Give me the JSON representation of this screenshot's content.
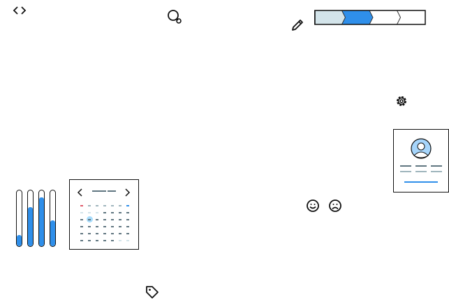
{
  "icons": {
    "code": "code-icon",
    "idea_search": "lightbulb-search-icon",
    "edit": "pencil-icon",
    "settings": "gear-icon",
    "happy": "smile-icon",
    "sad": "frown-icon",
    "tag": "tag-icon"
  },
  "stepper": {
    "steps": 4,
    "completed": 1,
    "current": 2
  },
  "level_bars": [
    0.2,
    0.7,
    0.87,
    0.46
  ],
  "calendar": {
    "rows": 6,
    "cols": 7,
    "selected": [
      2,
      1
    ]
  },
  "colors": {
    "accent": "#2f8fea",
    "done": "#d3e4ea",
    "avatar": "#a6d5fb",
    "text_dark": "#5f7580",
    "text_light": "#9fb5bd",
    "weekend_red": "#e05a6a",
    "selected": "#a8dcfb"
  }
}
